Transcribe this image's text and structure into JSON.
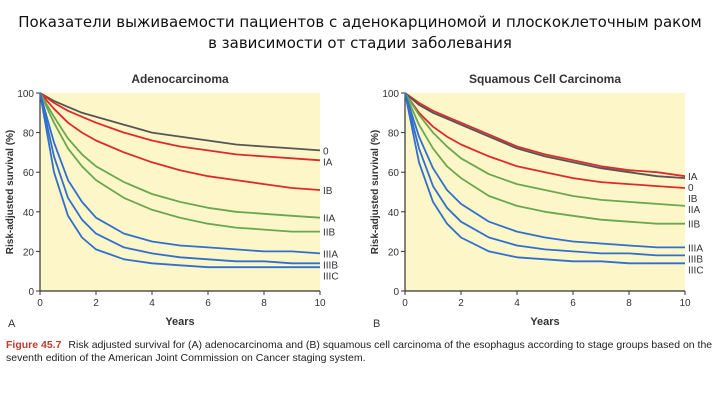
{
  "slide_title": {
    "line1": "Показатели выживаемости пациентов с аденокарциномой и плоскоклеточным раком",
    "line2": "в зависимости от стадии заболевания"
  },
  "caption": {
    "figure_label": "Figure 45.7",
    "text": "Risk adjusted survival for (A) adenocarcinoma and (B) squamous cell carcinoma of the esophagus according to stage groups based on the seventh edition of the American Joint Commission on Cancer staging system."
  },
  "colors": {
    "plot_background": "#fdf6c8",
    "stage_0": "#555555",
    "stage_I": "#dd2b2b",
    "stage_II": "#6aa84f",
    "stage_III": "#2f6fd0"
  },
  "chart_data": [
    {
      "type": "line",
      "panel_letter": "A",
      "title": "Adenocarcinoma",
      "xlabel": "Years",
      "ylabel": "Risk-adjusted survival (%)",
      "xlim": [
        0,
        10
      ],
      "ylim": [
        0,
        100
      ],
      "x_ticks": [
        0,
        2,
        4,
        6,
        8,
        10
      ],
      "y_ticks": [
        0,
        20,
        40,
        60,
        80,
        100
      ],
      "grid": false,
      "x": [
        0,
        0.5,
        1,
        1.5,
        2,
        3,
        4,
        5,
        6,
        7,
        8,
        9,
        10
      ],
      "series": [
        {
          "name": "0",
          "color": "#555555",
          "values": [
            100,
            96,
            93,
            90,
            88,
            84,
            80,
            78,
            76,
            74,
            73,
            72,
            71
          ]
        },
        {
          "name": "IA",
          "color": "#dd2b2b",
          "values": [
            100,
            95,
            91,
            88,
            85,
            80,
            76,
            73,
            71,
            69,
            68,
            67,
            66
          ]
        },
        {
          "name": "IB",
          "color": "#dd2b2b",
          "values": [
            100,
            92,
            85,
            80,
            76,
            70,
            65,
            61,
            58,
            56,
            54,
            52,
            51
          ]
        },
        {
          "name": "IIA",
          "color": "#6aa84f",
          "values": [
            100,
            88,
            77,
            69,
            63,
            55,
            49,
            45,
            42,
            40,
            39,
            38,
            37
          ]
        },
        {
          "name": "IIB",
          "color": "#6aa84f",
          "values": [
            100,
            85,
            72,
            63,
            56,
            47,
            41,
            37,
            34,
            32,
            31,
            30,
            30
          ]
        },
        {
          "name": "IIIA",
          "color": "#2f6fd0",
          "values": [
            100,
            75,
            56,
            45,
            37,
            29,
            25,
            23,
            22,
            21,
            20,
            20,
            19
          ]
        },
        {
          "name": "IIIB",
          "color": "#2f6fd0",
          "values": [
            100,
            68,
            47,
            36,
            29,
            22,
            19,
            17,
            16,
            15,
            15,
            14,
            14
          ]
        },
        {
          "name": "IIIC",
          "color": "#2f6fd0",
          "values": [
            100,
            60,
            38,
            27,
            21,
            16,
            14,
            13,
            12,
            12,
            12,
            12,
            12
          ]
        }
      ]
    },
    {
      "type": "line",
      "panel_letter": "B",
      "title": "Squamous Cell Carcinoma",
      "xlabel": "Years",
      "ylabel": "Risk-adjusted survival (%)",
      "xlim": [
        0,
        10
      ],
      "ylim": [
        0,
        100
      ],
      "x_ticks": [
        0,
        2,
        4,
        6,
        8,
        10
      ],
      "y_ticks": [
        0,
        20,
        40,
        60,
        80,
        100
      ],
      "grid": false,
      "x": [
        0,
        0.5,
        1,
        1.5,
        2,
        3,
        4,
        5,
        6,
        7,
        8,
        9,
        10
      ],
      "series": [
        {
          "name": "IA",
          "color": "#dd2b2b",
          "values": [
            100,
            95,
            91,
            88,
            85,
            79,
            73,
            69,
            66,
            63,
            61,
            60,
            58
          ]
        },
        {
          "name": "0",
          "color": "#555555",
          "values": [
            100,
            94,
            90,
            87,
            84,
            78,
            72,
            68,
            65,
            62,
            60,
            58,
            57
          ]
        },
        {
          "name": "IB",
          "color": "#dd2b2b",
          "values": [
            100,
            90,
            83,
            78,
            74,
            68,
            63,
            60,
            57,
            55,
            54,
            53,
            52
          ]
        },
        {
          "name": "IIA",
          "color": "#6aa84f",
          "values": [
            100,
            89,
            80,
            73,
            67,
            59,
            54,
            51,
            48,
            46,
            45,
            44,
            43
          ]
        },
        {
          "name": "IIB",
          "color": "#6aa84f",
          "values": [
            100,
            84,
            72,
            63,
            57,
            48,
            43,
            40,
            38,
            36,
            35,
            34,
            34
          ]
        },
        {
          "name": "IIIA",
          "color": "#2f6fd0",
          "values": [
            100,
            78,
            62,
            51,
            44,
            35,
            30,
            27,
            25,
            24,
            23,
            22,
            22
          ]
        },
        {
          "name": "IIIB",
          "color": "#2f6fd0",
          "values": [
            100,
            72,
            53,
            42,
            35,
            27,
            23,
            21,
            20,
            19,
            19,
            18,
            18
          ]
        },
        {
          "name": "IIIC",
          "color": "#2f6fd0",
          "values": [
            100,
            65,
            45,
            34,
            27,
            20,
            17,
            16,
            15,
            15,
            14,
            14,
            14
          ]
        }
      ]
    }
  ]
}
